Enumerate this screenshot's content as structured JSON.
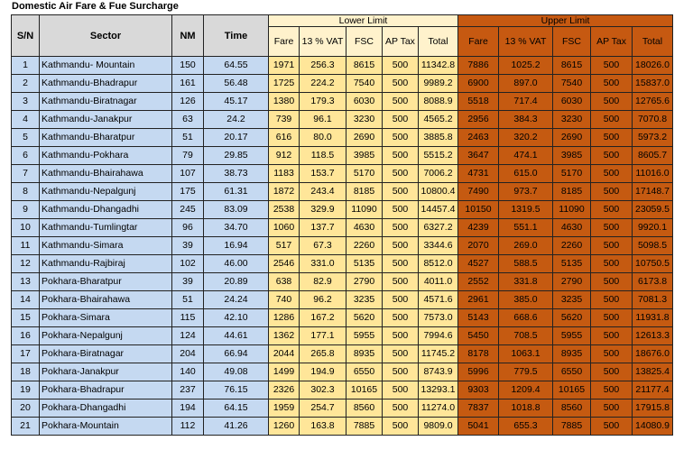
{
  "title": "Domestic Air Fare & Fue Surcharge",
  "table": {
    "header": {
      "columns": [
        "S/N",
        "Sector",
        "NM",
        "Time"
      ],
      "groups": [
        {
          "title": "Lower Limit",
          "columns": [
            "Fare",
            "13 % VAT",
            "FSC",
            "AP Tax",
            "Total"
          ]
        },
        {
          "title": "Upper Limit",
          "columns": [
            "Fare",
            "13 % VAT",
            "FSC",
            "AP Tax",
            "Total"
          ]
        }
      ]
    },
    "rows": [
      [
        "1",
        "Kathmandu- Mountain",
        "150",
        "64.55",
        "1971",
        "256.3",
        "8615",
        "500",
        "11342.8",
        "7886",
        "1025.2",
        "8615",
        "500",
        "18026.0"
      ],
      [
        "2",
        "Kathmandu-Bhadrapur",
        "161",
        "56.48",
        "1725",
        "224.2",
        "7540",
        "500",
        "9989.2",
        "6900",
        "897.0",
        "7540",
        "500",
        "15837.0"
      ],
      [
        "3",
        "Kathmandu-Biratnagar",
        "126",
        "45.17",
        "1380",
        "179.3",
        "6030",
        "500",
        "8088.9",
        "5518",
        "717.4",
        "6030",
        "500",
        "12765.6"
      ],
      [
        "4",
        "Kathmandu-Janakpur",
        "63",
        "24.2",
        "739",
        "96.1",
        "3230",
        "500",
        "4565.2",
        "2956",
        "384.3",
        "3230",
        "500",
        "7070.8"
      ],
      [
        "5",
        "Kathmandu-Bharatpur",
        "51",
        "20.17",
        "616",
        "80.0",
        "2690",
        "500",
        "3885.8",
        "2463",
        "320.2",
        "2690",
        "500",
        "5973.2"
      ],
      [
        "6",
        "Kathmandu-Pokhara",
        "79",
        "29.85",
        "912",
        "118.5",
        "3985",
        "500",
        "5515.2",
        "3647",
        "474.1",
        "3985",
        "500",
        "8605.7"
      ],
      [
        "7",
        "Kathmandu-Bhairahawa",
        "107",
        "38.73",
        "1183",
        "153.7",
        "5170",
        "500",
        "7006.2",
        "4731",
        "615.0",
        "5170",
        "500",
        "11016.0"
      ],
      [
        "8",
        "Kathmandu-Nepalgunj",
        "175",
        "61.31",
        "1872",
        "243.4",
        "8185",
        "500",
        "10800.4",
        "7490",
        "973.7",
        "8185",
        "500",
        "17148.7"
      ],
      [
        "9",
        "Kathmandu-Dhangadhi",
        "245",
        "83.09",
        "2538",
        "329.9",
        "11090",
        "500",
        "14457.4",
        "10150",
        "1319.5",
        "11090",
        "500",
        "23059.5"
      ],
      [
        "10",
        "Kathmandu-Tumlingtar",
        "96",
        "34.70",
        "1060",
        "137.7",
        "4630",
        "500",
        "6327.2",
        "4239",
        "551.1",
        "4630",
        "500",
        "9920.1"
      ],
      [
        "11",
        "Kathmandu-Simara",
        "39",
        "16.94",
        "517",
        "67.3",
        "2260",
        "500",
        "3344.6",
        "2070",
        "269.0",
        "2260",
        "500",
        "5098.5"
      ],
      [
        "12",
        "Kathmandu-Rajbiraj",
        "102",
        "46.00",
        "2546",
        "331.0",
        "5135",
        "500",
        "8512.0",
        "4527",
        "588.5",
        "5135",
        "500",
        "10750.5"
      ],
      [
        "13",
        "Pokhara-Bharatpur",
        "39",
        "20.89",
        "638",
        "82.9",
        "2790",
        "500",
        "4011.0",
        "2552",
        "331.8",
        "2790",
        "500",
        "6173.8"
      ],
      [
        "14",
        "Pokhara-Bhairahawa",
        "51",
        "24.24",
        "740",
        "96.2",
        "3235",
        "500",
        "4571.6",
        "2961",
        "385.0",
        "3235",
        "500",
        "7081.3"
      ],
      [
        "15",
        "Pokhara-Simara",
        "115",
        "42.10",
        "1286",
        "167.2",
        "5620",
        "500",
        "7573.0",
        "5143",
        "668.6",
        "5620",
        "500",
        "11931.8"
      ],
      [
        "16",
        "Pokhara-Nepalgunj",
        "124",
        "44.61",
        "1362",
        "177.1",
        "5955",
        "500",
        "7994.6",
        "5450",
        "708.5",
        "5955",
        "500",
        "12613.3"
      ],
      [
        "17",
        "Pokhara-Biratnagar",
        "204",
        "66.94",
        "2044",
        "265.8",
        "8935",
        "500",
        "11745.2",
        "8178",
        "1063.1",
        "8935",
        "500",
        "18676.0"
      ],
      [
        "18",
        "Pokhara-Janakpur",
        "140",
        "49.08",
        "1499",
        "194.9",
        "6550",
        "500",
        "8743.9",
        "5996",
        "779.5",
        "6550",
        "500",
        "13825.4"
      ],
      [
        "19",
        "Pokhara-Bhadrapur",
        "237",
        "76.15",
        "2326",
        "302.3",
        "10165",
        "500",
        "13293.1",
        "9303",
        "1209.4",
        "10165",
        "500",
        "21177.4"
      ],
      [
        "20",
        "Pokhara-Dhangadhi",
        "194",
        "64.15",
        "1959",
        "254.7",
        "8560",
        "500",
        "11274.0",
        "7837",
        "1018.8",
        "8560",
        "500",
        "17915.8"
      ],
      [
        "21",
        "Pokhara-Mountain",
        "112",
        "41.26",
        "1260",
        "163.8",
        "7885",
        "500",
        "9809.0",
        "5041",
        "655.3",
        "7885",
        "500",
        "14080.9"
      ]
    ]
  }
}
